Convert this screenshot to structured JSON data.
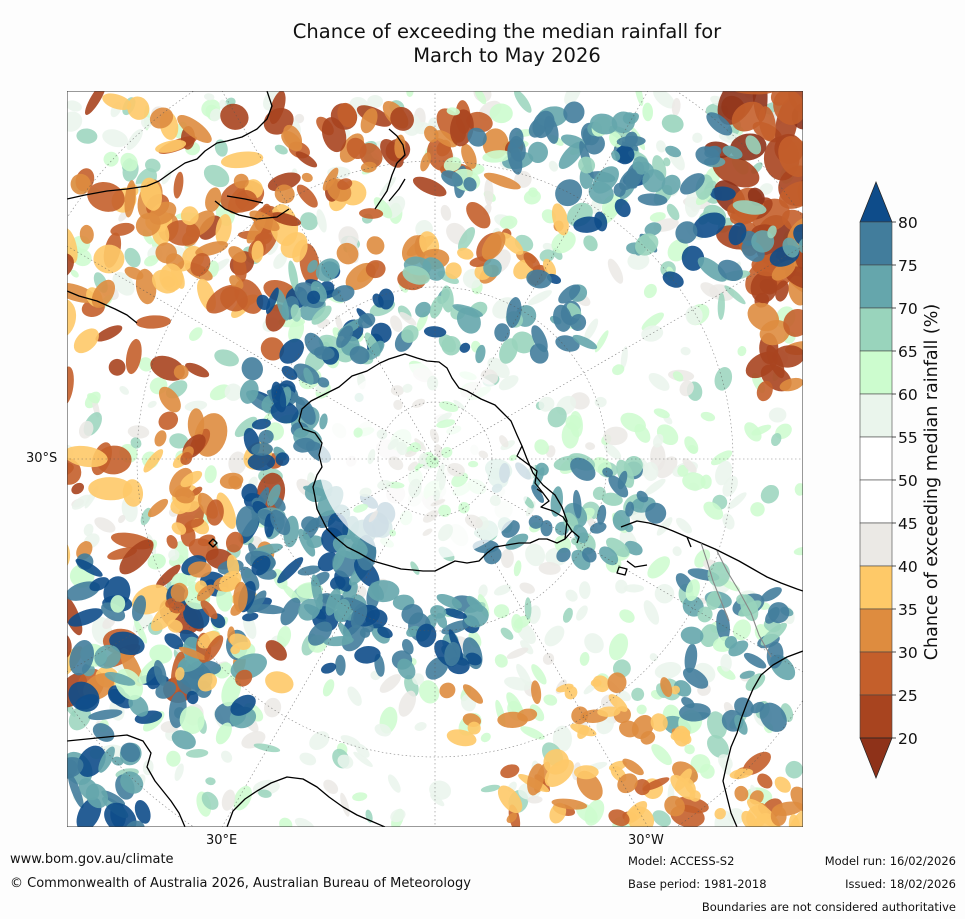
{
  "title": {
    "line1": "Chance of exceeding the median rainfall for",
    "line2": "March to May 2026"
  },
  "map": {
    "projection": "south polar stereographic",
    "lat_label": "30°S",
    "lon_labels": [
      "30°E",
      "30°W"
    ]
  },
  "colorbar": {
    "label": "Chance of exceeding median rainfall (%)",
    "ticks": [
      "20",
      "25",
      "30",
      "35",
      "40",
      "45",
      "50",
      "55",
      "60",
      "65",
      "70",
      "75",
      "80"
    ],
    "levels": [
      {
        "range": "<20",
        "color": "#8e3219"
      },
      {
        "range": "20-25",
        "color": "#a8441f"
      },
      {
        "range": "25-30",
        "color": "#c45f2b"
      },
      {
        "range": "30-35",
        "color": "#de8c3f"
      },
      {
        "range": "35-40",
        "color": "#fec968"
      },
      {
        "range": "40-45",
        "color": "#ebe9e5"
      },
      {
        "range": "45-50",
        "color": "#ffffff"
      },
      {
        "range": "50-55",
        "color": "#ffffff"
      },
      {
        "range": "55-60",
        "color": "#eaf5ec"
      },
      {
        "range": "60-65",
        "color": "#ccfcce"
      },
      {
        "range": "65-70",
        "color": "#99d4bc"
      },
      {
        "range": "70-75",
        "color": "#65a6ac"
      },
      {
        "range": "75-80",
        "color": "#427d9c"
      },
      {
        "range": ">80",
        "color": "#0e4c8a"
      }
    ]
  },
  "footer": {
    "website": "www.bom.gov.au/climate",
    "copyright": "© Commonwealth of Australia 2026, Australian Bureau of Meteorology",
    "model": "Model: ACCESS-S2",
    "base_period": "Base period: 1981-2018",
    "model_run": "Model run: 16/02/2026",
    "issued": "Issued: 18/02/2026",
    "disclaimer": "Boundaries are not considered authoritative"
  }
}
